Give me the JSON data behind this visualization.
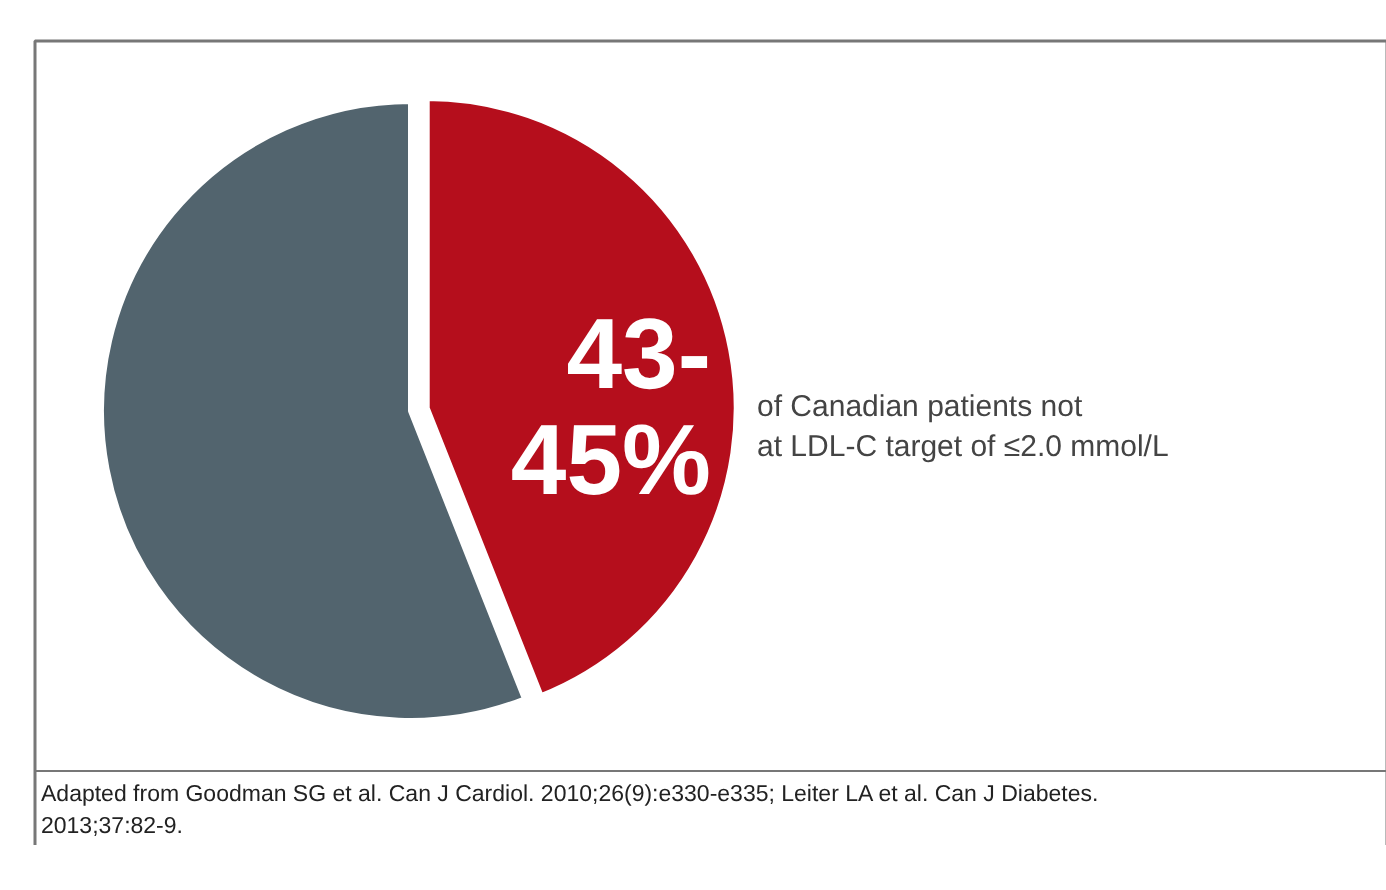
{
  "chart_data": {
    "type": "pie",
    "categories": [
      null,
      null
    ],
    "values": [
      44,
      56
    ],
    "colors": [
      "#b50e1c",
      "#52646e"
    ],
    "legend": false,
    "annotations": [
      "43-\n45%",
      "of Canadian patients not\nat LDL-C target of ≤2.0 mmol/L",
      "Adapted from Goodman SG et al. Can J Cardiol. 2010;26(9):e330-e335; Leiter LA et al. Can J Diabetes.\n2013;37:82-9."
    ]
  }
}
